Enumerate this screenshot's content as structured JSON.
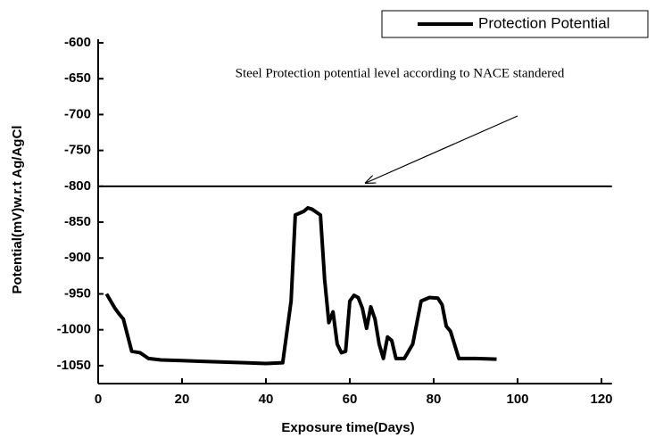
{
  "chart_data": {
    "type": "line",
    "xlabel": "Exposure time(Days)",
    "ylabel": "Potential(mV)w.r.t Ag/AgCl",
    "annotation": "Steel Protection potential level according to NACE standered",
    "reference_line": -800,
    "xlim": [
      0,
      122.5
    ],
    "xticks": [
      0,
      20,
      40,
      60,
      80,
      100,
      120
    ],
    "ylim": [
      -1075,
      -600
    ],
    "yticks": [
      -600,
      -650,
      -700,
      -750,
      -800,
      -850,
      -900,
      -950,
      -1000,
      -1050
    ],
    "legend": "top-right",
    "series": [
      {
        "name": "Protection Potential",
        "color": "#000000",
        "x": [
          2,
          4,
          5,
          6,
          8,
          10,
          12,
          15,
          20,
          25,
          30,
          35,
          40,
          44,
          46,
          47,
          49,
          50,
          51,
          53,
          54,
          55,
          56,
          57,
          58,
          59,
          60,
          61,
          62,
          63,
          64,
          65,
          66,
          67,
          68,
          69,
          70,
          71,
          73,
          75,
          77,
          79,
          81,
          82,
          83,
          84,
          86,
          90,
          95
        ],
        "values": [
          -950,
          -970,
          -978,
          -985,
          -1030,
          -1032,
          -1040,
          -1042,
          -1043,
          -1044,
          -1045,
          -1046,
          -1047,
          -1046,
          -960,
          -840,
          -835,
          -830,
          -832,
          -840,
          -930,
          -990,
          -975,
          -1020,
          -1032,
          -1030,
          -960,
          -952,
          -955,
          -970,
          -998,
          -968,
          -985,
          -1020,
          -1040,
          -1010,
          -1015,
          -1040,
          -1040,
          -1020,
          -960,
          -955,
          -956,
          -965,
          -995,
          -1002,
          -1040,
          -1040,
          -1041
        ]
      }
    ]
  }
}
